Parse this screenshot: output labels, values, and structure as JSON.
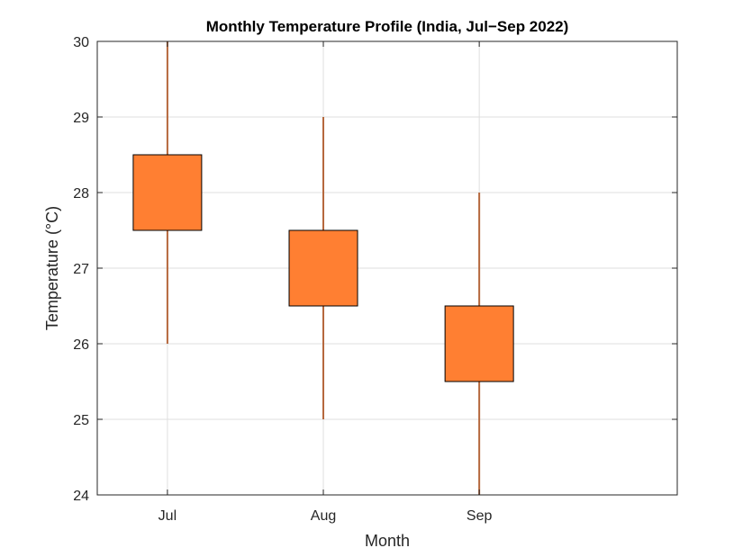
{
  "chart_data": {
    "type": "candlestick",
    "title": "Monthly Temperature Profile (India, Jul−Sep 2022)",
    "xlabel": "Month",
    "ylabel": "Temperature (°C)",
    "categories": [
      "Jul",
      "Aug",
      "Sep"
    ],
    "ylim": [
      24,
      30
    ],
    "yticks": [
      24,
      25,
      26,
      27,
      28,
      29,
      30
    ],
    "grid": true,
    "boxes": [
      {
        "category": "Jul",
        "low": 26,
        "q1": 27.5,
        "q3": 28.5,
        "high": 30
      },
      {
        "category": "Aug",
        "low": 25,
        "q1": 26.5,
        "q3": 27.5,
        "high": 29
      },
      {
        "category": "Sep",
        "low": 24,
        "q1": 25.5,
        "q3": 26.5,
        "high": 28
      }
    ],
    "colors": {
      "box_fill": "#FF7F32",
      "box_edge": "#000000",
      "whisker": "#B5673C",
      "grid": "#DFDFDF",
      "axis": "#262626"
    }
  }
}
